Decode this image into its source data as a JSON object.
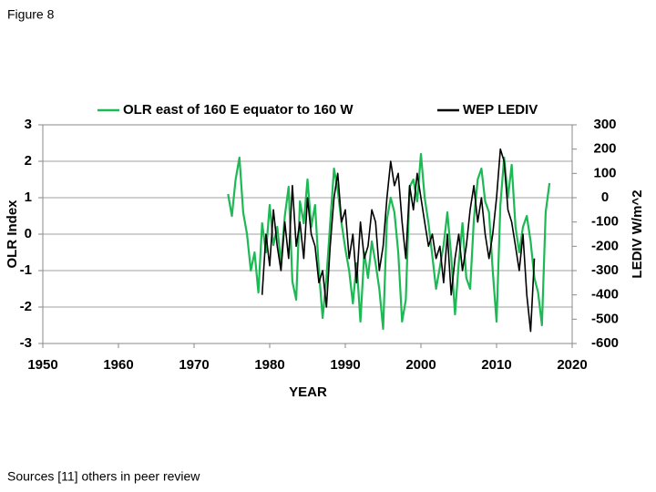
{
  "figure_label": "Figure 8",
  "footer": "Sources [11] others in peer review",
  "chart_data": {
    "type": "line",
    "xlabel": "YEAR",
    "ylabel": "OLR  Index",
    "y2label": "LEDIV  W/m^2",
    "xlim": [
      1950,
      2020
    ],
    "xticks": [
      1950,
      1960,
      1970,
      1980,
      1990,
      2000,
      2010,
      2020
    ],
    "ylim": [
      -3,
      3
    ],
    "yticks": [
      -3,
      -2,
      -1,
      0,
      1,
      2,
      3
    ],
    "y2lim": [
      -600,
      300
    ],
    "y2ticks": [
      -600,
      -500,
      -400,
      -300,
      -200,
      -100,
      0,
      100,
      200,
      300
    ],
    "grid": true,
    "series": [
      {
        "name": "OLR east of 160 E equator to 160 W",
        "color": "#1db954",
        "axis": "y",
        "x": [
          1974.5,
          1975,
          1975.5,
          1976,
          1976.5,
          1977,
          1977.5,
          1978,
          1978.5,
          1979,
          1979.5,
          1980,
          1980.5,
          1981,
          1981.5,
          1982,
          1982.5,
          1983,
          1983.5,
          1984,
          1984.5,
          1985,
          1985.5,
          1986,
          1986.5,
          1987,
          1987.5,
          1988,
          1988.5,
          1989,
          1989.5,
          1990,
          1990.5,
          1991,
          1991.5,
          1992,
          1992.5,
          1993,
          1993.5,
          1994,
          1994.5,
          1995,
          1995.5,
          1996,
          1996.5,
          1997,
          1997.5,
          1998,
          1998.5,
          1999,
          1999.5,
          2000,
          2000.5,
          2001,
          2001.5,
          2002,
          2002.5,
          2003,
          2003.5,
          2004,
          2004.5,
          2005,
          2005.5,
          2006,
          2006.5,
          2007,
          2007.5,
          2008,
          2008.5,
          2009,
          2009.5,
          2010,
          2010.5,
          2011,
          2011.5,
          2012,
          2012.5,
          2013,
          2013.5,
          2014,
          2014.5,
          2015,
          2015.5,
          2016,
          2016.5,
          2017
        ],
        "values": [
          1.1,
          0.5,
          1.5,
          2.1,
          0.6,
          0.0,
          -1.0,
          -0.5,
          -1.6,
          0.3,
          -0.5,
          0.8,
          -0.3,
          0.2,
          -0.8,
          0.5,
          1.3,
          -1.3,
          -1.8,
          0.9,
          0.3,
          1.5,
          0.2,
          0.8,
          -1.0,
          -2.3,
          -1.2,
          0.3,
          1.8,
          1.2,
          0.3,
          -0.4,
          -1.0,
          -1.9,
          -0.8,
          -2.4,
          -0.5,
          -1.2,
          -0.2,
          -0.8,
          -1.5,
          -2.6,
          0.4,
          1.0,
          0.6,
          -0.5,
          -2.4,
          -1.8,
          1.3,
          1.5,
          0.9,
          2.2,
          1.0,
          0.3,
          -0.6,
          -1.5,
          -0.9,
          -0.3,
          0.6,
          -0.6,
          -2.2,
          -0.8,
          0.3,
          -1.2,
          -1.5,
          0.4,
          1.5,
          1.8,
          0.9,
          0.6,
          -1.0,
          -2.4,
          0.8,
          2.1,
          1.0,
          1.9,
          0.2,
          -0.5,
          0.2,
          0.5,
          -0.2,
          -1.2,
          -1.6,
          -2.5,
          0.6,
          1.4
        ]
      },
      {
        "name": "WEP LEDIV",
        "color": "#000000",
        "axis": "y2",
        "x": [
          1979,
          1979.5,
          1980,
          1980.5,
          1981,
          1981.5,
          1982,
          1982.5,
          1983,
          1983.5,
          1984,
          1984.5,
          1985,
          1985.5,
          1986,
          1986.5,
          1987,
          1987.5,
          1988,
          1988.5,
          1989,
          1989.5,
          1990,
          1990.5,
          1991,
          1991.5,
          1992,
          1992.5,
          1993,
          1993.5,
          1994,
          1994.5,
          1995,
          1995.5,
          1996,
          1996.5,
          1997,
          1997.5,
          1998,
          1998.5,
          1999,
          1999.5,
          2000,
          2000.5,
          2001,
          2001.5,
          2002,
          2002.5,
          2003,
          2003.5,
          2004,
          2004.5,
          2005,
          2005.5,
          2006,
          2006.5,
          2007,
          2007.5,
          2008,
          2008.5,
          2009,
          2009.5,
          2010,
          2010.5,
          2011,
          2011.5,
          2012,
          2012.5,
          2013,
          2013.5,
          2014,
          2014.5,
          2015
        ],
        "values": [
          -400,
          -150,
          -280,
          -50,
          -200,
          -300,
          -100,
          -250,
          50,
          -200,
          -100,
          -250,
          0,
          -150,
          -200,
          -350,
          -300,
          -450,
          -200,
          0,
          100,
          -100,
          -50,
          -250,
          -150,
          -350,
          -100,
          -250,
          -200,
          -50,
          -100,
          -300,
          -200,
          0,
          150,
          50,
          100,
          -100,
          -250,
          50,
          -50,
          100,
          0,
          -100,
          -200,
          -150,
          -250,
          -200,
          -350,
          -150,
          -400,
          -250,
          -150,
          -300,
          -200,
          -50,
          50,
          -100,
          0,
          -150,
          -250,
          -150,
          0,
          200,
          150,
          -50,
          -100,
          -200,
          -300,
          -150,
          -400,
          -550,
          -250
        ]
      }
    ]
  }
}
